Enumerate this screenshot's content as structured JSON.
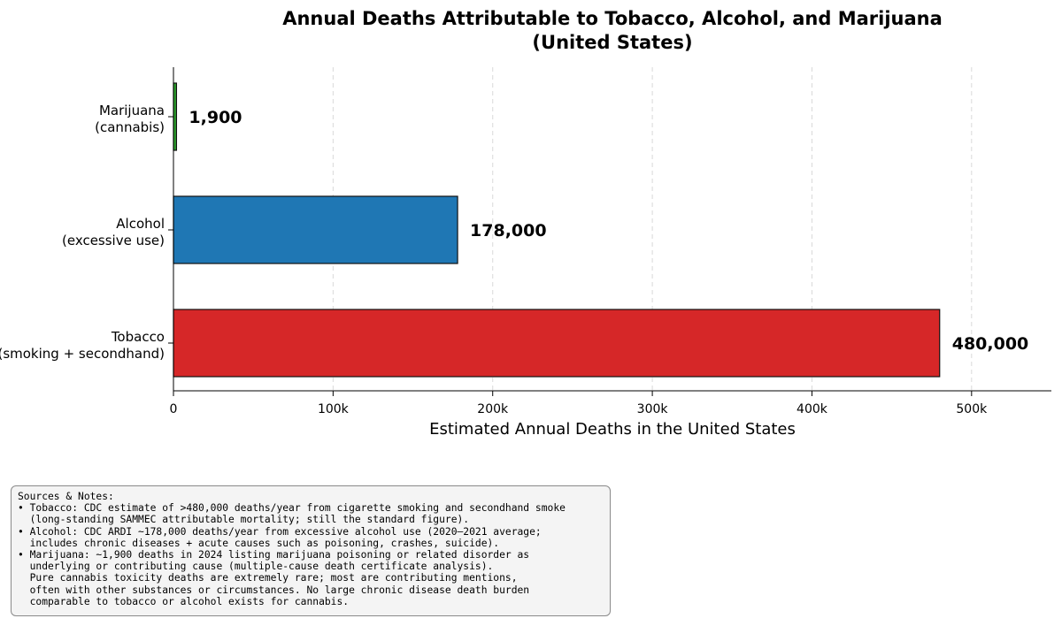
{
  "chart_data": {
    "type": "bar",
    "orientation": "horizontal",
    "title": "Annual Deaths Attributable to Tobacco, Alcohol, and Marijuana",
    "subtitle": "(United States)",
    "xlabel": "Estimated Annual Deaths in the United States",
    "ylabel": "",
    "xlim": [
      0,
      550000
    ],
    "xticks": [
      0,
      100000,
      200000,
      300000,
      400000,
      500000
    ],
    "xtick_labels": [
      "0",
      "100k",
      "200k",
      "300k",
      "400k",
      "500k"
    ],
    "grid": "vertical dashed",
    "categories": [
      {
        "line1": "Marijuana",
        "line2": "(cannabis)"
      },
      {
        "line1": "Alcohol",
        "line2": "(excessive use)"
      },
      {
        "line1": "Tobacco",
        "line2": "(smoking + secondhand)"
      }
    ],
    "values": [
      1900,
      178000,
      480000
    ],
    "value_labels": [
      "1,900",
      "178,000",
      "480,000"
    ],
    "colors": [
      "#2ca02c",
      "#1f77b4",
      "#d62728"
    ]
  },
  "notes": {
    "lines": [
      "Sources & Notes:",
      "• Tobacco: CDC estimate of >480,000 deaths/year from cigarette smoking and secondhand smoke",
      "  (long-standing SAMMEC attributable mortality; still the standard figure).",
      "• Alcohol: CDC ARDI ~178,000 deaths/year from excessive alcohol use (2020–2021 average;",
      "  includes chronic diseases + acute causes such as poisoning, crashes, suicide).",
      "• Marijuana: ~1,900 deaths in 2024 listing marijuana poisoning or related disorder as",
      "  underlying or contributing cause (multiple-cause death certificate analysis).",
      "  Pure cannabis toxicity deaths are extremely rare; most are contributing mentions,",
      "  often with other substances or circumstances. No large chronic disease death burden",
      "  comparable to tobacco or alcohol exists for cannabis."
    ]
  }
}
